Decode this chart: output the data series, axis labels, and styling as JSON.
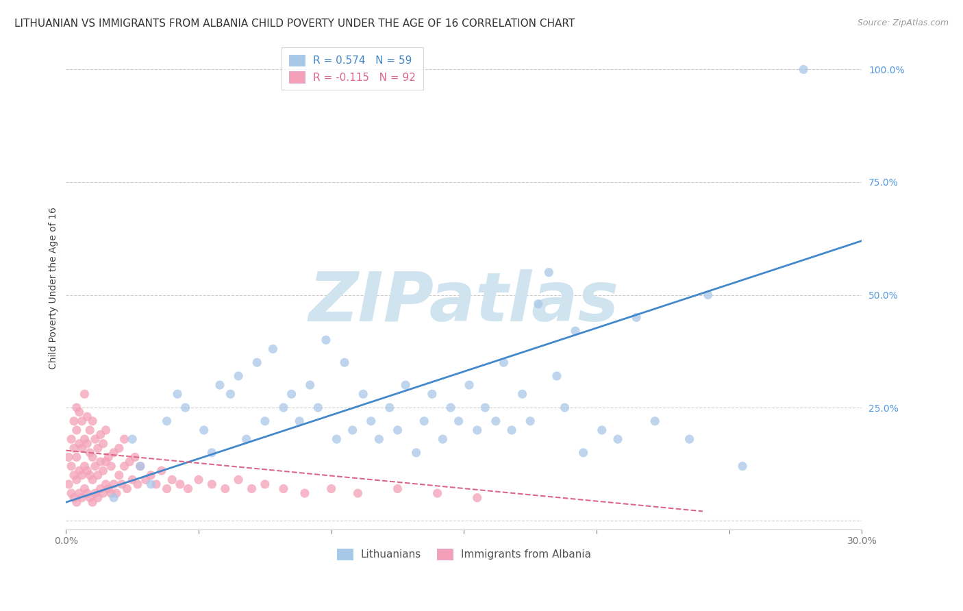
{
  "title": "LITHUANIAN VS IMMIGRANTS FROM ALBANIA CHILD POVERTY UNDER THE AGE OF 16 CORRELATION CHART",
  "source": "Source: ZipAtlas.com",
  "ylabel": "Child Poverty Under the Age of 16",
  "xlim": [
    0.0,
    0.3
  ],
  "ylim": [
    -0.02,
    1.05
  ],
  "blue_color": "#a8c8e8",
  "pink_color": "#f4a0b8",
  "blue_line_color": "#4488cc",
  "pink_line_color": "#dd6688",
  "legend_blue_label": "R = 0.574   N = 59",
  "legend_pink_label": "R = -0.115   N = 92",
  "legend_blue_series": "Lithuanians",
  "legend_pink_series": "Immigrants from Albania",
  "blue_trend_x": [
    0.0,
    0.3
  ],
  "blue_trend_y": [
    0.04,
    0.62
  ],
  "pink_trend_x": [
    0.0,
    0.24
  ],
  "pink_trend_y": [
    0.155,
    0.02
  ],
  "blue_scatter_x": [
    0.018,
    0.025,
    0.028,
    0.032,
    0.038,
    0.042,
    0.045,
    0.052,
    0.055,
    0.058,
    0.062,
    0.065,
    0.068,
    0.072,
    0.075,
    0.078,
    0.082,
    0.085,
    0.088,
    0.092,
    0.095,
    0.098,
    0.102,
    0.105,
    0.108,
    0.112,
    0.115,
    0.118,
    0.122,
    0.125,
    0.128,
    0.132,
    0.135,
    0.138,
    0.142,
    0.145,
    0.148,
    0.152,
    0.155,
    0.158,
    0.162,
    0.165,
    0.168,
    0.172,
    0.175,
    0.178,
    0.182,
    0.185,
    0.188,
    0.192,
    0.195,
    0.202,
    0.208,
    0.215,
    0.222,
    0.235,
    0.242,
    0.255,
    0.278
  ],
  "blue_scatter_y": [
    0.05,
    0.18,
    0.12,
    0.08,
    0.22,
    0.28,
    0.25,
    0.2,
    0.15,
    0.3,
    0.28,
    0.32,
    0.18,
    0.35,
    0.22,
    0.38,
    0.25,
    0.28,
    0.22,
    0.3,
    0.25,
    0.4,
    0.18,
    0.35,
    0.2,
    0.28,
    0.22,
    0.18,
    0.25,
    0.2,
    0.3,
    0.15,
    0.22,
    0.28,
    0.18,
    0.25,
    0.22,
    0.3,
    0.2,
    0.25,
    0.22,
    0.35,
    0.2,
    0.28,
    0.22,
    0.48,
    0.55,
    0.32,
    0.25,
    0.42,
    0.15,
    0.2,
    0.18,
    0.45,
    0.22,
    0.18,
    0.5,
    0.12,
    1.0
  ],
  "pink_scatter_x": [
    0.001,
    0.001,
    0.002,
    0.002,
    0.002,
    0.003,
    0.003,
    0.003,
    0.003,
    0.004,
    0.004,
    0.004,
    0.004,
    0.004,
    0.005,
    0.005,
    0.005,
    0.005,
    0.006,
    0.006,
    0.006,
    0.006,
    0.007,
    0.007,
    0.007,
    0.007,
    0.008,
    0.008,
    0.008,
    0.008,
    0.009,
    0.009,
    0.009,
    0.009,
    0.01,
    0.01,
    0.01,
    0.01,
    0.011,
    0.011,
    0.011,
    0.012,
    0.012,
    0.012,
    0.013,
    0.013,
    0.013,
    0.014,
    0.014,
    0.014,
    0.015,
    0.015,
    0.015,
    0.016,
    0.016,
    0.017,
    0.017,
    0.018,
    0.018,
    0.019,
    0.02,
    0.02,
    0.021,
    0.022,
    0.022,
    0.023,
    0.024,
    0.025,
    0.026,
    0.027,
    0.028,
    0.03,
    0.032,
    0.034,
    0.036,
    0.038,
    0.04,
    0.043,
    0.046,
    0.05,
    0.055,
    0.06,
    0.065,
    0.07,
    0.075,
    0.082,
    0.09,
    0.1,
    0.11,
    0.125,
    0.14,
    0.155
  ],
  "pink_scatter_y": [
    0.08,
    0.14,
    0.06,
    0.12,
    0.18,
    0.05,
    0.1,
    0.16,
    0.22,
    0.04,
    0.09,
    0.14,
    0.2,
    0.25,
    0.06,
    0.11,
    0.17,
    0.24,
    0.05,
    0.1,
    0.16,
    0.22,
    0.07,
    0.12,
    0.18,
    0.28,
    0.06,
    0.11,
    0.17,
    0.23,
    0.05,
    0.1,
    0.15,
    0.2,
    0.04,
    0.09,
    0.14,
    0.22,
    0.06,
    0.12,
    0.18,
    0.05,
    0.1,
    0.16,
    0.07,
    0.13,
    0.19,
    0.06,
    0.11,
    0.17,
    0.08,
    0.13,
    0.2,
    0.07,
    0.14,
    0.06,
    0.12,
    0.08,
    0.15,
    0.06,
    0.1,
    0.16,
    0.08,
    0.12,
    0.18,
    0.07,
    0.13,
    0.09,
    0.14,
    0.08,
    0.12,
    0.09,
    0.1,
    0.08,
    0.11,
    0.07,
    0.09,
    0.08,
    0.07,
    0.09,
    0.08,
    0.07,
    0.09,
    0.07,
    0.08,
    0.07,
    0.06,
    0.07,
    0.06,
    0.07,
    0.06,
    0.05
  ],
  "watermark_text": "ZIPatlas",
  "watermark_color": "#d0e4f0",
  "grid_color": "#cccccc",
  "background_color": "#ffffff",
  "title_fontsize": 11,
  "axis_label_fontsize": 10,
  "tick_fontsize": 10,
  "source_fontsize": 9
}
